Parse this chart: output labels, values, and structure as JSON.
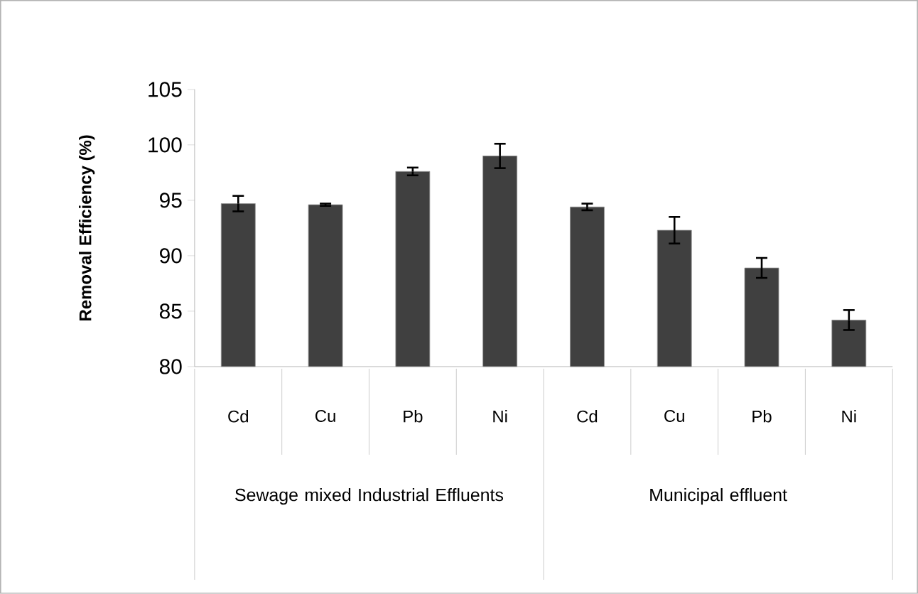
{
  "chart_data": {
    "type": "bar",
    "ylabel": "Removal Efficiency (%)",
    "categories": [
      "Cd",
      "Cu",
      "Pb",
      "Ni",
      "Cd",
      "Cu",
      "Pb",
      "Ni"
    ],
    "values": [
      94.7,
      94.6,
      97.6,
      99.0,
      94.4,
      92.3,
      88.9,
      84.2
    ],
    "errors": [
      0.7,
      0.1,
      0.35,
      1.1,
      0.3,
      1.2,
      0.9,
      0.9
    ],
    "color": "#404040",
    "ylim": [
      80,
      105
    ],
    "yticks": [
      80,
      85,
      90,
      95,
      100,
      105
    ],
    "grid": false,
    "annotations": [
      "Sewage mixed Industrial Effluents",
      "Municipal effluent"
    ]
  }
}
